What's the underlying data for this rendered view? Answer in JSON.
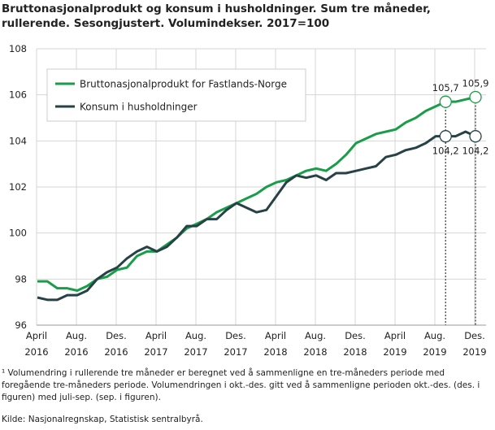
{
  "chart_data": {
    "type": "line",
    "title": "Bruttonasjonalprodukt og konsum i husholdninger. Sum tre måneder, rullerende. Sesongjustert. Volumindekser. 2017=100",
    "ylim": [
      96,
      108
    ],
    "yticks": [
      "96",
      "98",
      "100",
      "102",
      "104",
      "106",
      "108"
    ],
    "xticks": [
      [
        "April",
        "2016"
      ],
      [
        "Aug.",
        "2016"
      ],
      [
        "Des.",
        "2016"
      ],
      [
        "April",
        "2017"
      ],
      [
        "Aug.",
        "2017"
      ],
      [
        "Des.",
        "2017"
      ],
      [
        "April",
        "2018"
      ],
      [
        "Aug.",
        "2018"
      ],
      [
        "Des.",
        "2018"
      ],
      [
        "April",
        "2019"
      ],
      [
        "Aug.",
        "2019"
      ],
      [
        "Des.",
        "2019"
      ]
    ],
    "x_start": "2016-04",
    "x_end": "2019-12",
    "grid": true,
    "legend_position": "top-left",
    "series": [
      {
        "name": "Bruttonasjonalprodukt for Fastlands-Norge",
        "color": "#1a9d49",
        "values": [
          97.9,
          97.9,
          97.6,
          97.6,
          97.5,
          97.7,
          98.0,
          98.1,
          98.4,
          98.5,
          99.0,
          99.2,
          99.2,
          99.5,
          99.8,
          100.2,
          100.4,
          100.6,
          100.9,
          101.1,
          101.3,
          101.5,
          101.7,
          102.0,
          102.2,
          102.3,
          102.5,
          102.7,
          102.8,
          102.7,
          103.0,
          103.4,
          103.9,
          104.1,
          104.3,
          104.4,
          104.5,
          104.8,
          105.0,
          105.3,
          105.5,
          105.7,
          105.7,
          105.8,
          105.9
        ]
      },
      {
        "name": "Konsum i husholdninger",
        "color": "#274247",
        "values": [
          97.2,
          97.1,
          97.1,
          97.3,
          97.3,
          97.5,
          98.0,
          98.3,
          98.5,
          98.9,
          99.2,
          99.4,
          99.2,
          99.4,
          99.8,
          100.3,
          100.3,
          100.6,
          100.6,
          101.0,
          101.3,
          101.1,
          100.9,
          101.0,
          101.6,
          102.2,
          102.5,
          102.4,
          102.5,
          102.3,
          102.6,
          102.6,
          102.7,
          102.8,
          102.9,
          103.3,
          103.4,
          103.6,
          103.7,
          103.9,
          104.2,
          104.2,
          104.2,
          104.4,
          104.2
        ]
      }
    ],
    "annotations": [
      {
        "month": "2019-09",
        "series": 0,
        "label": "105,7"
      },
      {
        "month": "2019-12",
        "series": 0,
        "label": "105,9"
      },
      {
        "month": "2019-09",
        "series": 1,
        "label": "104,2"
      },
      {
        "month": "2019-12",
        "series": 1,
        "label": "104,2"
      }
    ]
  },
  "footnote": "¹ Volumendring  i rullerende tre måneder er beregnet ved å sammenligne en tre-måneders periode med foregående tre-måneders periode. Volumendringen i okt.-des. gitt ved å sammenligne perioden okt.-des. (des. i figuren) med juli-sep. (sep. i figuren).",
  "source": "Kilde: Nasjonalregnskap, Statistisk sentralbyrå."
}
